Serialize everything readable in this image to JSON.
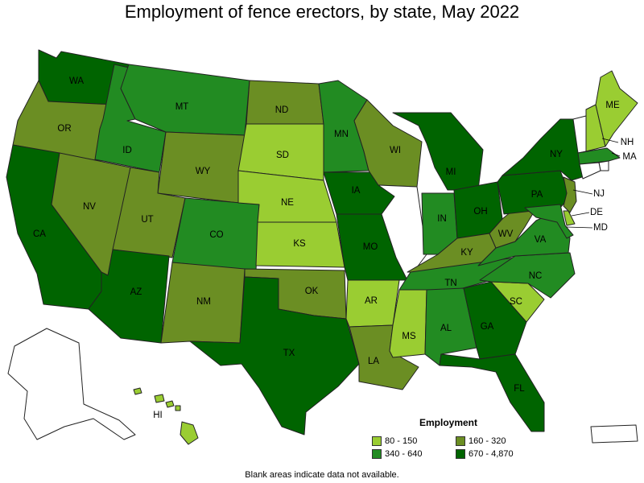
{
  "title": "Employment of fence erectors, by state, May 2022",
  "legend": {
    "title": "Employment",
    "bins": [
      {
        "label": "80 - 150",
        "color": "#9acd32"
      },
      {
        "label": "160 - 320",
        "color": "#6b8e23"
      },
      {
        "label": "340 - 640",
        "color": "#228b22"
      },
      {
        "label": "670 - 4,870",
        "color": "#006400"
      }
    ],
    "no_data_color": "#ffffff"
  },
  "footnote": "Blank areas indicate data not available.",
  "states": [
    {
      "abbr": "WA",
      "bin": 3
    },
    {
      "abbr": "OR",
      "bin": 1
    },
    {
      "abbr": "CA",
      "bin": 3
    },
    {
      "abbr": "ID",
      "bin": 2
    },
    {
      "abbr": "NV",
      "bin": 1
    },
    {
      "abbr": "MT",
      "bin": 2
    },
    {
      "abbr": "WY",
      "bin": 1
    },
    {
      "abbr": "UT",
      "bin": 1
    },
    {
      "abbr": "AZ",
      "bin": 3
    },
    {
      "abbr": "CO",
      "bin": 2
    },
    {
      "abbr": "NM",
      "bin": 1
    },
    {
      "abbr": "ND",
      "bin": 1
    },
    {
      "abbr": "SD",
      "bin": 0
    },
    {
      "abbr": "NE",
      "bin": 0
    },
    {
      "abbr": "KS",
      "bin": 0
    },
    {
      "abbr": "OK",
      "bin": 1
    },
    {
      "abbr": "TX",
      "bin": 3
    },
    {
      "abbr": "MN",
      "bin": 2
    },
    {
      "abbr": "IA",
      "bin": 3
    },
    {
      "abbr": "MO",
      "bin": 3
    },
    {
      "abbr": "AR",
      "bin": 0
    },
    {
      "abbr": "LA",
      "bin": 1
    },
    {
      "abbr": "WI",
      "bin": 1
    },
    {
      "abbr": "IL",
      "bin": null
    },
    {
      "abbr": "MI",
      "bin": 3
    },
    {
      "abbr": "IN",
      "bin": 2
    },
    {
      "abbr": "OH",
      "bin": 3
    },
    {
      "abbr": "KY",
      "bin": 1
    },
    {
      "abbr": "TN",
      "bin": 2
    },
    {
      "abbr": "MS",
      "bin": 0
    },
    {
      "abbr": "AL",
      "bin": 2
    },
    {
      "abbr": "GA",
      "bin": 3
    },
    {
      "abbr": "FL",
      "bin": 3
    },
    {
      "abbr": "SC",
      "bin": 0
    },
    {
      "abbr": "NC",
      "bin": 2
    },
    {
      "abbr": "VA",
      "bin": 2
    },
    {
      "abbr": "WV",
      "bin": 1
    },
    {
      "abbr": "PA",
      "bin": 3
    },
    {
      "abbr": "NY",
      "bin": 3
    },
    {
      "abbr": "VT",
      "bin": null
    },
    {
      "abbr": "NH",
      "bin": 0
    },
    {
      "abbr": "ME",
      "bin": 0
    },
    {
      "abbr": "MA",
      "bin": 2
    },
    {
      "abbr": "RI",
      "bin": null
    },
    {
      "abbr": "CT",
      "bin": null
    },
    {
      "abbr": "NJ",
      "bin": 1
    },
    {
      "abbr": "DE",
      "bin": 0
    },
    {
      "abbr": "MD",
      "bin": 2
    },
    {
      "abbr": "AK",
      "bin": null
    },
    {
      "abbr": "HI",
      "bin": 0
    },
    {
      "abbr": "PR",
      "bin": null
    }
  ]
}
